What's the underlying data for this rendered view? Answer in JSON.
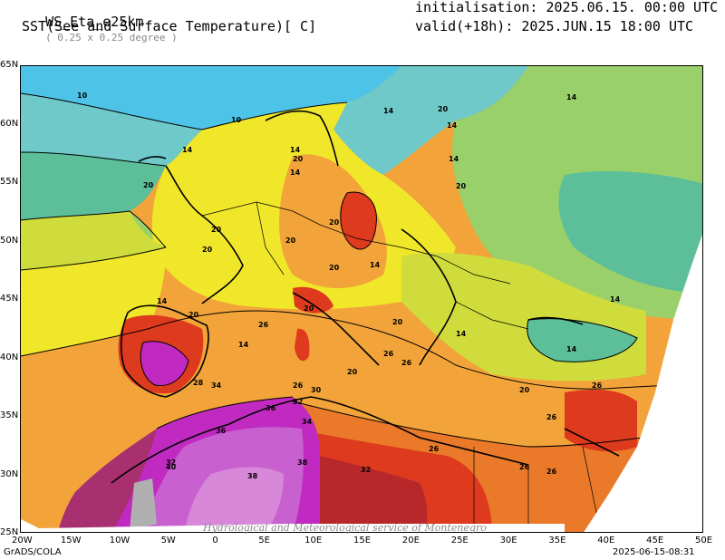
{
  "header": {
    "model": "WS_Eta_e25km",
    "resolution": "( 0.25 x 0.25 degree )",
    "field": "SST(See and Surface Temperature)[ C]",
    "initialisation": "initialisation: 2025.06.15. 00:00 UTC",
    "valid": "valid(+18h): 2025.JUN.15 18:00 UTC"
  },
  "axes": {
    "lat_labels": [
      "65N",
      "60N",
      "55N",
      "50N",
      "45N",
      "40N",
      "35N",
      "30N",
      "25N"
    ],
    "lon_labels": [
      "20W",
      "15W",
      "10W",
      "5W",
      "0",
      "5E",
      "10E",
      "15E",
      "20E",
      "25E",
      "30E",
      "35E",
      "40E",
      "45E",
      "50E"
    ]
  },
  "contour_labels": [
    "10",
    "10",
    "14",
    "14",
    "14",
    "14",
    "14",
    "14",
    "14",
    "14",
    "14",
    "14",
    "14",
    "14",
    "14",
    "20",
    "20",
    "20",
    "20",
    "20",
    "20",
    "20",
    "20",
    "20",
    "20",
    "20",
    "20",
    "20",
    "20",
    "26",
    "26",
    "26",
    "26",
    "26",
    "26",
    "26",
    "26",
    "26",
    "28",
    "30",
    "32",
    "32",
    "32",
    "34",
    "34",
    "36",
    "36",
    "38",
    "38",
    "40"
  ],
  "footer": {
    "left": "GrADS/COLA",
    "right": "2025-06-15-08:31",
    "watermark": "Hydrological and Meteorological service of Montenegro"
  },
  "colors": {
    "t10": "#4ec3e8",
    "t12": "#6ec9c8",
    "t14": "#5cbf9a",
    "t16": "#9ad06a",
    "t18": "#cfdc3c",
    "t20": "#f0e62a",
    "t22": "#f4b63a",
    "t24": "#f2a43a",
    "t26": "#ea7a2a",
    "t28": "#de3a1e",
    "t30": "#b8282a",
    "t32": "#a83070",
    "t34": "#c02ac0",
    "t36": "#c860d0",
    "t38": "#d888d8",
    "t40": "#b0b0b0"
  }
}
